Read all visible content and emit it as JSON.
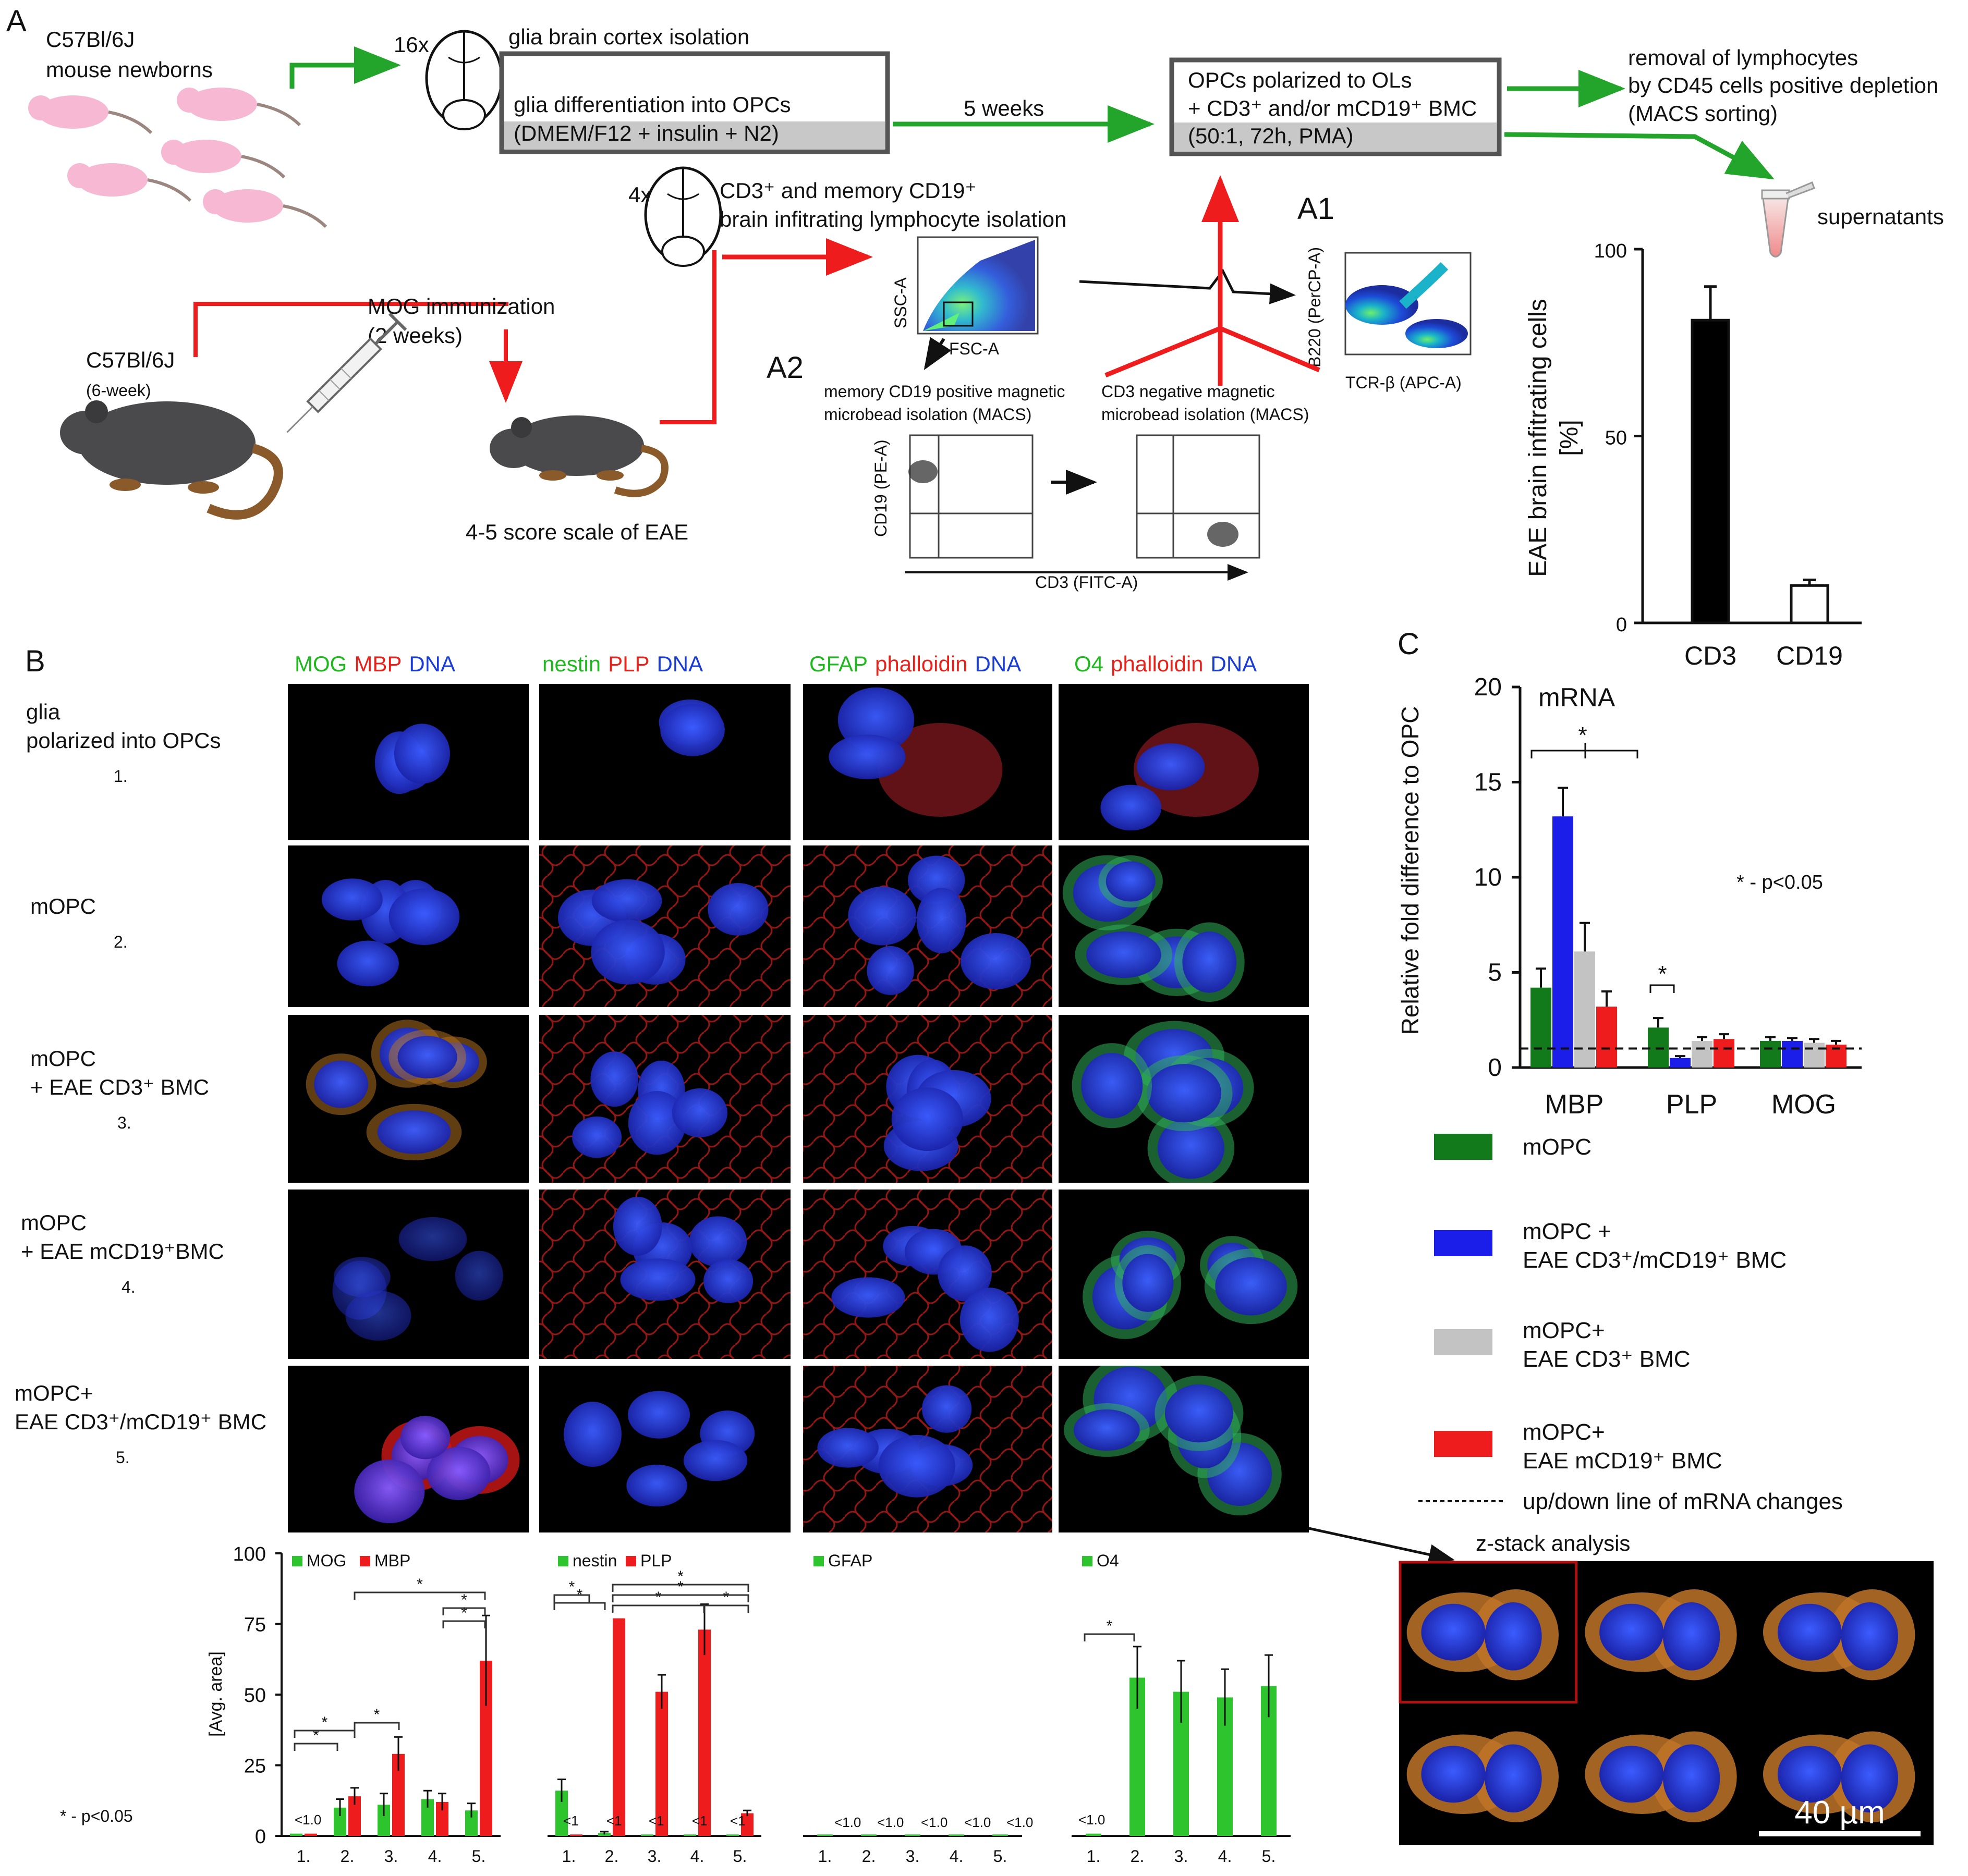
{
  "panel_labels": {
    "A": "A",
    "A1": "A1",
    "A2": "A2",
    "B": "B",
    "C": "C"
  },
  "schema_a": {
    "mouse_newborns": [
      "C57Bl/6J",
      "mouse newborns"
    ],
    "count_16x": "16x",
    "glia_isolation": "glia brain cortex isolation",
    "glia_differentiation": "glia differentiation into OPCs",
    "medium": "(DMEM/F12 + insulin + N2)",
    "five_weeks": "5 weeks",
    "opc_box": [
      "OPCs polarized to OLs",
      "+ CD3⁺ and/or mCD19⁺ BMC",
      "(50:1, 72h, PMA)"
    ],
    "removal": [
      "removal of lymphocytes",
      "by CD45 cells positive depletion",
      "(MACS sorting)"
    ],
    "supernatants": "supernatants",
    "count_4x": "4x",
    "lymph_isolation": [
      "CD3⁺ and memory CD19⁺",
      "brain infitrating lymphocyte isolation"
    ],
    "mog_immunization": [
      "MOG immunization",
      "(2 weeks)"
    ],
    "adult_mouse": "C57Bl/6J",
    "six_week": "(6-week)",
    "eae_score": "4-5 score scale of EAE",
    "facs_axes": {
      "ssc": "SSC-A",
      "fsc": "FSC-A",
      "b220": "B220 (PerCP-A)",
      "tcr": "TCR-β (APC-A)",
      "cd19": "CD19 (PE-A)",
      "cd3": "CD3 (FITC-A)"
    },
    "memory_cd19_isolation": [
      "memory CD19 positive magnetic",
      "microbead isolation (MACS)"
    ],
    "cd3_negative_isolation": [
      "CD3 negative magnetic",
      "microbead isolation (MACS)"
    ]
  },
  "bar_a": {
    "ylabel": [
      "EAE brain infitrating cells",
      "[%]"
    ],
    "ticks": [
      "0",
      "50",
      "100"
    ]
  },
  "panel_b": {
    "column_headers": [
      [
        {
          "text": "MOG",
          "color": "#1fb81f"
        },
        {
          "text": "MBP",
          "color": "#e8221b"
        },
        {
          "text": "DNA",
          "color": "#1a3cd6"
        }
      ],
      [
        {
          "text": "nestin",
          "color": "#1fb81f"
        },
        {
          "text": "PLP",
          "color": "#e8221b"
        },
        {
          "text": "DNA",
          "color": "#1a3cd6"
        }
      ],
      [
        {
          "text": "GFAP",
          "color": "#1fb81f"
        },
        {
          "text": "phalloidin",
          "color": "#e8221b"
        },
        {
          "text": "DNA",
          "color": "#1a3cd6"
        }
      ],
      [
        {
          "text": "O4",
          "color": "#1fb81f"
        },
        {
          "text": "phalloidin",
          "color": "#e8221b"
        },
        {
          "text": "DNA",
          "color": "#1a3cd6"
        }
      ]
    ],
    "row_labels": [
      {
        "lines": [
          "glia",
          "polarized into OPCs"
        ],
        "num": "1."
      },
      {
        "lines": [
          "mOPC"
        ],
        "num": "2."
      },
      {
        "lines": [
          "mOPC",
          "+ EAE CD3⁺ BMC"
        ],
        "num": "3."
      },
      {
        "lines": [
          "mOPC",
          "+ EAE mCD19⁺BMC"
        ],
        "num": "4."
      },
      {
        "lines": [
          "mOPC+",
          "EAE CD3⁺/mCD19⁺ BMC"
        ],
        "num": "5."
      }
    ],
    "quant_ylabel": "[Avg. area]",
    "quant_ticks": [
      "0",
      "25",
      "50",
      "75",
      "100"
    ],
    "quant_x": [
      "1.",
      "2.",
      "3.",
      "4.",
      "5."
    ],
    "sig_note": "* - p<0.05",
    "star": "*",
    "lt10": "<1.0",
    "lt1": "<1",
    "z_stack": "z-stack analysis",
    "scale_bar": "40 µm"
  },
  "panel_c": {
    "title": "mRNA",
    "ylabel": "Relative fold difference to OPC",
    "sig_note": "* - p<0.05",
    "legend": [
      {
        "label": [
          "mOPC"
        ],
        "color": "#137a1c"
      },
      {
        "label": [
          "mOPC +",
          "EAE CD3⁺/mCD19⁺ BMC"
        ],
        "color": "#1a1ee8"
      },
      {
        "label": [
          "mOPC+",
          "EAE CD3⁺ BMC"
        ],
        "color": "#c3c3c3"
      },
      {
        "label": [
          "mOPC+",
          "EAE mCD19⁺ BMC"
        ],
        "color": "#ee1c1c"
      }
    ],
    "dashed_label": "up/down line of mRNA changes"
  },
  "chart_data": [
    {
      "type": "bar",
      "categories": [
        "CD3",
        "CD19"
      ],
      "values": [
        81,
        10
      ],
      "errors": [
        9,
        1.5
      ],
      "ylabel": "EAE brain infitrating cells [%]",
      "ylim": [
        0,
        100
      ],
      "colors": [
        "#000000",
        "#ffffff"
      ]
    },
    {
      "type": "bar",
      "categories": [
        "MBP",
        "PLP",
        "MOG"
      ],
      "series": [
        {
          "name": "mOPC",
          "values": [
            4.2,
            2.1,
            1.4
          ],
          "errors": [
            1.0,
            0.5,
            0.2
          ],
          "color": "#137a1c"
        },
        {
          "name": "mOPC + EAE CD3⁺/mCD19⁺ BMC",
          "values": [
            13.2,
            0.5,
            1.4
          ],
          "errors": [
            1.5,
            0.1,
            0.15
          ],
          "color": "#1a1ee8"
        },
        {
          "name": "mOPC+ EAE CD3⁺ BMC",
          "values": [
            6.1,
            1.4,
            1.3
          ],
          "errors": [
            1.5,
            0.2,
            0.2
          ],
          "color": "#c3c3c3"
        },
        {
          "name": "mOPC+ EAE mCD19⁺ BMC",
          "values": [
            3.2,
            1.5,
            1.2
          ],
          "errors": [
            0.8,
            0.25,
            0.2
          ],
          "color": "#ee1c1c"
        }
      ],
      "ylabel": "Relative fold difference to OPC",
      "title": "mRNA",
      "ylim": [
        0,
        20
      ],
      "yticks": [
        0,
        5,
        10,
        15,
        20
      ],
      "reference_line": 1
    },
    {
      "type": "bar",
      "categories": [
        "1.",
        "2.",
        "3.",
        "4.",
        "5."
      ],
      "series": [
        {
          "name": "MOG",
          "values": [
            0.8,
            10,
            11,
            13,
            9
          ],
          "errors": [
            0,
            3,
            4,
            3,
            2.5
          ],
          "color": "#2ec42e"
        },
        {
          "name": "MBP",
          "values": [
            0.8,
            14,
            29,
            12,
            62
          ],
          "errors": [
            0,
            3,
            6,
            3,
            16
          ],
          "color": "#ee1c1c"
        }
      ],
      "ylabel": "[Avg. area]",
      "ylim": [
        0,
        100
      ]
    },
    {
      "type": "bar",
      "categories": [
        "1.",
        "2.",
        "3.",
        "4.",
        "5."
      ],
      "series": [
        {
          "name": "nestin",
          "values": [
            16,
            1,
            0.5,
            0.5,
            0.5
          ],
          "errors": [
            4,
            0.5,
            0,
            0,
            0
          ],
          "color": "#2ec42e"
        },
        {
          "name": "PLP",
          "values": [
            0.5,
            77,
            51,
            73,
            8
          ],
          "errors": [
            0,
            0,
            6,
            9,
            1
          ],
          "color": "#ee1c1c"
        }
      ],
      "ylim": [
        0,
        100
      ]
    },
    {
      "type": "bar",
      "categories": [
        "1.",
        "2.",
        "3.",
        "4.",
        "5."
      ],
      "series": [
        {
          "name": "GFAP",
          "values": [
            0.5,
            0.5,
            0.5,
            0.5,
            0.5
          ],
          "errors": [
            0,
            0,
            0,
            0,
            0
          ],
          "color": "#2ec42e"
        }
      ],
      "ylim": [
        0,
        100
      ]
    },
    {
      "type": "bar",
      "categories": [
        "1.",
        "2.",
        "3.",
        "4.",
        "5."
      ],
      "series": [
        {
          "name": "O4",
          "values": [
            0.8,
            56,
            51,
            49,
            53
          ],
          "errors": [
            0,
            11,
            11,
            10,
            11
          ],
          "color": "#2ec42e"
        }
      ],
      "ylim": [
        0,
        100
      ]
    }
  ]
}
